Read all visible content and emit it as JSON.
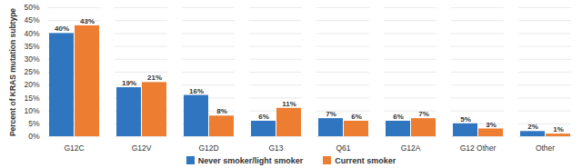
{
  "chart_data": {
    "type": "bar",
    "y_label": "Percent of KRAS mutation subtype",
    "categories": [
      "G12C",
      "G12V",
      "G12D",
      "G13",
      "Q61",
      "G12A",
      "G12 Other",
      "Other"
    ],
    "series": [
      {
        "name": "Never smoker/light smoker",
        "color": "#2f75c0",
        "values": [
          40,
          19,
          16,
          6,
          7,
          6,
          5,
          2
        ],
        "value_labels": [
          "40%",
          "19%",
          "16%",
          "6%",
          "7%",
          "6%",
          "5%",
          "2%"
        ]
      },
      {
        "name": "Current smoker",
        "color": "#ed7d31",
        "values": [
          43,
          21,
          8,
          11,
          6,
          7,
          3,
          1
        ],
        "value_labels": [
          "43%",
          "21%",
          "8%",
          "11%",
          "6%",
          "7%",
          "3%",
          "1%"
        ]
      }
    ],
    "ylim": [
      0,
      50
    ],
    "yticks": [
      {
        "value": 0,
        "label": "0%"
      },
      {
        "value": 5,
        "label": "5%"
      },
      {
        "value": 10,
        "label": "10%"
      },
      {
        "value": 15,
        "label": "15%"
      },
      {
        "value": 20,
        "label": "20%"
      },
      {
        "value": 25,
        "label": "25%"
      },
      {
        "value": 30,
        "label": "30%"
      },
      {
        "value": 35,
        "label": "35%"
      },
      {
        "value": 40,
        "label": "40%"
      },
      {
        "value": 45,
        "label": "45%"
      },
      {
        "value": 50,
        "label": "50%"
      }
    ],
    "grid": true,
    "data_labels": true,
    "legend": "bottom"
  }
}
